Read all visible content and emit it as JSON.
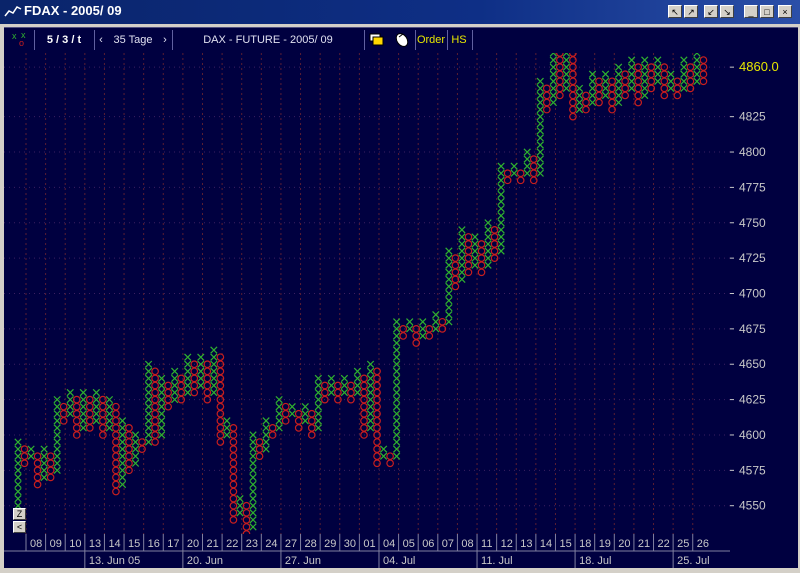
{
  "window": {
    "title": "FDAX - 2005/ 09",
    "icon_name": "chart-icon",
    "buttons": [
      {
        "name": "scroll-left-up-button",
        "label": "↖"
      },
      {
        "name": "scroll-right-up-button",
        "label": "↗"
      },
      {
        "name": "scroll-left-down-button",
        "label": "↙"
      },
      {
        "name": "scroll-right-down-button",
        "label": "↘"
      },
      {
        "name": "minimize-button",
        "label": "_"
      },
      {
        "name": "maximize-button",
        "label": "□"
      },
      {
        "name": "close-button",
        "label": "×"
      }
    ]
  },
  "toolbar": {
    "box_setting": "5 / 3 / t",
    "period_prev": "‹",
    "period": "35 Tage",
    "period_next": "›",
    "instrument": "DAX - FUTURE - 2005/ 09",
    "order_label": "Order",
    "hs_label": "HS",
    "icons": [
      "xo-chart-icon",
      "windows-icon",
      "mouse-icon"
    ]
  },
  "side_buttons": {
    "zoom": "Z",
    "back": "<"
  },
  "colors": {
    "background": "#000040",
    "x_column": "#2fb22f",
    "o_column": "#c81e1e",
    "grid": "#5a1e32",
    "axis_text": "#c8c8c8",
    "last_price": "#e6e600"
  },
  "chart_data": {
    "type": "point-and-figure",
    "box_size": 5,
    "reversal": 3,
    "title": "DAX - FUTURE - 2005/ 09",
    "last_price_label": "4860.0",
    "y_ticks": [
      4550,
      4575,
      4600,
      4625,
      4650,
      4675,
      4700,
      4725,
      4750,
      4775,
      4800,
      4825,
      4860
    ],
    "ylim": [
      4530,
      4870
    ],
    "day_labels": [
      "08",
      "09",
      "10",
      "13",
      "14",
      "15",
      "16",
      "17",
      "20",
      "21",
      "22",
      "23",
      "24",
      "27",
      "28",
      "29",
      "30",
      "01",
      "04",
      "05",
      "06",
      "07",
      "08",
      "11",
      "12",
      "13",
      "14",
      "15",
      "18",
      "19",
      "20",
      "21",
      "22",
      "25",
      "26"
    ],
    "week_labels": [
      {
        "day_index": 3,
        "label": "13. Jun 05"
      },
      {
        "day_index": 8,
        "label": "20. Jun"
      },
      {
        "day_index": 13,
        "label": "27. Jun"
      },
      {
        "day_index": 18,
        "label": "04. Jul"
      },
      {
        "day_index": 23,
        "label": "11. Jul"
      },
      {
        "day_index": 28,
        "label": "18. Jul"
      },
      {
        "day_index": 33,
        "label": "25. Jul"
      }
    ],
    "columns": [
      {
        "type": "X",
        "low": 4550,
        "high": 4595
      },
      {
        "type": "O",
        "low": 4580,
        "high": 4590
      },
      {
        "type": "X",
        "low": 4585,
        "high": 4590
      },
      {
        "type": "O",
        "low": 4565,
        "high": 4585
      },
      {
        "type": "X",
        "low": 4570,
        "high": 4590
      },
      {
        "type": "O",
        "low": 4570,
        "high": 4585
      },
      {
        "type": "X",
        "low": 4575,
        "high": 4625
      },
      {
        "type": "O",
        "low": 4610,
        "high": 4620
      },
      {
        "type": "X",
        "low": 4615,
        "high": 4630
      },
      {
        "type": "O",
        "low": 4600,
        "high": 4625
      },
      {
        "type": "X",
        "low": 4605,
        "high": 4630
      },
      {
        "type": "O",
        "low": 4605,
        "high": 4625
      },
      {
        "type": "X",
        "low": 4610,
        "high": 4630
      },
      {
        "type": "O",
        "low": 4600,
        "high": 4625
      },
      {
        "type": "X",
        "low": 4605,
        "high": 4625
      },
      {
        "type": "O",
        "low": 4560,
        "high": 4620
      },
      {
        "type": "X",
        "low": 4565,
        "high": 4610
      },
      {
        "type": "O",
        "low": 4575,
        "high": 4605
      },
      {
        "type": "X",
        "low": 4580,
        "high": 4600
      },
      {
        "type": "O",
        "low": 4590,
        "high": 4595
      },
      {
        "type": "X",
        "low": 4595,
        "high": 4650
      },
      {
        "type": "O",
        "low": 4595,
        "high": 4645
      },
      {
        "type": "X",
        "low": 4600,
        "high": 4640
      },
      {
        "type": "O",
        "low": 4620,
        "high": 4635
      },
      {
        "type": "X",
        "low": 4625,
        "high": 4645
      },
      {
        "type": "O",
        "low": 4625,
        "high": 4640
      },
      {
        "type": "X",
        "low": 4630,
        "high": 4655
      },
      {
        "type": "O",
        "low": 4630,
        "high": 4650
      },
      {
        "type": "X",
        "low": 4635,
        "high": 4655
      },
      {
        "type": "O",
        "low": 4625,
        "high": 4650
      },
      {
        "type": "X",
        "low": 4630,
        "high": 4660
      },
      {
        "type": "O",
        "low": 4595,
        "high": 4655
      },
      {
        "type": "X",
        "low": 4600,
        "high": 4610
      },
      {
        "type": "O",
        "low": 4540,
        "high": 4605
      },
      {
        "type": "X",
        "low": 4545,
        "high": 4555
      },
      {
        "type": "O",
        "low": 4530,
        "high": 4550
      },
      {
        "type": "X",
        "low": 4535,
        "high": 4600
      },
      {
        "type": "O",
        "low": 4585,
        "high": 4595
      },
      {
        "type": "X",
        "low": 4590,
        "high": 4610
      },
      {
        "type": "O",
        "low": 4600,
        "high": 4605
      },
      {
        "type": "X",
        "low": 4605,
        "high": 4625
      },
      {
        "type": "O",
        "low": 4610,
        "high": 4620
      },
      {
        "type": "X",
        "low": 4615,
        "high": 4620
      },
      {
        "type": "O",
        "low": 4605,
        "high": 4615
      },
      {
        "type": "X",
        "low": 4610,
        "high": 4620
      },
      {
        "type": "O",
        "low": 4600,
        "high": 4615
      },
      {
        "type": "X",
        "low": 4605,
        "high": 4640
      },
      {
        "type": "O",
        "low": 4625,
        "high": 4635
      },
      {
        "type": "X",
        "low": 4630,
        "high": 4640
      },
      {
        "type": "O",
        "low": 4625,
        "high": 4635
      },
      {
        "type": "X",
        "low": 4630,
        "high": 4640
      },
      {
        "type": "O",
        "low": 4625,
        "high": 4635
      },
      {
        "type": "X",
        "low": 4630,
        "high": 4645
      },
      {
        "type": "O",
        "low": 4600,
        "high": 4640
      },
      {
        "type": "X",
        "low": 4605,
        "high": 4650
      },
      {
        "type": "O",
        "low": 4580,
        "high": 4645
      },
      {
        "type": "X",
        "low": 4585,
        "high": 4590
      },
      {
        "type": "O",
        "low": 4580,
        "high": 4585
      },
      {
        "type": "X",
        "low": 4585,
        "high": 4680
      },
      {
        "type": "O",
        "low": 4670,
        "high": 4675
      },
      {
        "type": "X",
        "low": 4675,
        "high": 4680
      },
      {
        "type": "O",
        "low": 4665,
        "high": 4675
      },
      {
        "type": "X",
        "low": 4670,
        "high": 4680
      },
      {
        "type": "O",
        "low": 4670,
        "high": 4675
      },
      {
        "type": "X",
        "low": 4675,
        "high": 4685
      },
      {
        "type": "O",
        "low": 4675,
        "high": 4680
      },
      {
        "type": "X",
        "low": 4680,
        "high": 4730
      },
      {
        "type": "O",
        "low": 4705,
        "high": 4725
      },
      {
        "type": "X",
        "low": 4710,
        "high": 4745
      },
      {
        "type": "O",
        "low": 4715,
        "high": 4740
      },
      {
        "type": "X",
        "low": 4720,
        "high": 4740
      },
      {
        "type": "O",
        "low": 4715,
        "high": 4735
      },
      {
        "type": "X",
        "low": 4720,
        "high": 4750
      },
      {
        "type": "O",
        "low": 4725,
        "high": 4745
      },
      {
        "type": "X",
        "low": 4730,
        "high": 4790
      },
      {
        "type": "O",
        "low": 4780,
        "high": 4785
      },
      {
        "type": "X",
        "low": 4785,
        "high": 4790
      },
      {
        "type": "O",
        "low": 4780,
        "high": 4785
      },
      {
        "type": "X",
        "low": 4785,
        "high": 4800
      },
      {
        "type": "O",
        "low": 4780,
        "high": 4795
      },
      {
        "type": "X",
        "low": 4785,
        "high": 4850
      },
      {
        "type": "O",
        "low": 4830,
        "high": 4845
      },
      {
        "type": "X",
        "low": 4835,
        "high": 4880
      },
      {
        "type": "O",
        "low": 4840,
        "high": 4875
      },
      {
        "type": "X",
        "low": 4845,
        "high": 4880
      },
      {
        "type": "O",
        "low": 4825,
        "high": 4875
      },
      {
        "type": "X",
        "low": 4830,
        "high": 4845
      },
      {
        "type": "O",
        "low": 4830,
        "high": 4840
      },
      {
        "type": "X",
        "low": 4835,
        "high": 4855
      },
      {
        "type": "O",
        "low": 4835,
        "high": 4850
      },
      {
        "type": "X",
        "low": 4840,
        "high": 4855
      },
      {
        "type": "O",
        "low": 4830,
        "high": 4850
      },
      {
        "type": "X",
        "low": 4835,
        "high": 4860
      },
      {
        "type": "O",
        "low": 4840,
        "high": 4855
      },
      {
        "type": "X",
        "low": 4845,
        "high": 4865
      },
      {
        "type": "O",
        "low": 4835,
        "high": 4860
      },
      {
        "type": "X",
        "low": 4840,
        "high": 4865
      },
      {
        "type": "O",
        "low": 4845,
        "high": 4860
      },
      {
        "type": "X",
        "low": 4850,
        "high": 4865
      },
      {
        "type": "O",
        "low": 4840,
        "high": 4860
      },
      {
        "type": "X",
        "low": 4845,
        "high": 4855
      },
      {
        "type": "O",
        "low": 4840,
        "high": 4850
      },
      {
        "type": "X",
        "low": 4845,
        "high": 4865
      },
      {
        "type": "O",
        "low": 4845,
        "high": 4860
      },
      {
        "type": "X",
        "low": 4850,
        "high": 4870
      },
      {
        "type": "O",
        "low": 4850,
        "high": 4865
      }
    ]
  }
}
